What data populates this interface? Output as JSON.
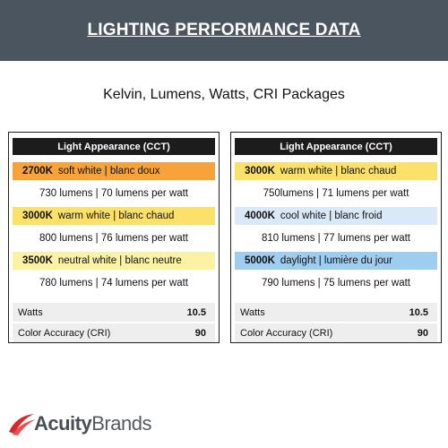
{
  "banner": {
    "title": "LIGHTING PERFORMANCE DATA",
    "color": "#4a5560"
  },
  "subtitle": "Kelvin, Lumens, Watts, CRI Packages",
  "panels": [
    {
      "header": "Light Appearance (CCT)",
      "rows": [
        {
          "kelvin": "2700K",
          "description": "soft white | blanc doux",
          "color": "#f5a33a",
          "lumens": "730 lumens | 70 lumens per watt"
        },
        {
          "kelvin": "3000K",
          "description": "warm white | blanc chaud",
          "color": "#fbe069",
          "lumens": "800 lumens | 76 lumens per watt"
        },
        {
          "kelvin": "3500K",
          "description": "neutral white | blanc neutre",
          "color": "#fbf3a3",
          "lumens": "780 lumens | 74 lumens per watt"
        }
      ],
      "watts_label": "Watts",
      "watts_value": "10.5",
      "cri_label": "Color Accuracy (CRI)",
      "cri_value": "90"
    },
    {
      "header": "Light Appearance (CCT)",
      "rows": [
        {
          "kelvin": "3000K",
          "description": "warm white | blanc chaud",
          "color": "#fbe069",
          "lumens": "750lumens | 71 lumens per watt"
        },
        {
          "kelvin": "4000K",
          "description": "cool white | blanc froid",
          "color": "#d9e9f7",
          "lumens": "810 lumens | 77 lumens per watt"
        },
        {
          "kelvin": "5000K",
          "description": "daylight | lumière du jour",
          "color": "#9fcdef",
          "lumens": "790 lumens | 75 lumens per watt"
        }
      ],
      "watts_label": "Watts",
      "watts_value": "10.5",
      "cri_label": "Color Accuracy (CRI)",
      "cri_value": "90"
    }
  ],
  "logo": {
    "text_bold": "Acuity",
    "text_regular": "Brands",
    "icon": "acuity-swoosh-icon",
    "accent": "#d42a2a"
  }
}
